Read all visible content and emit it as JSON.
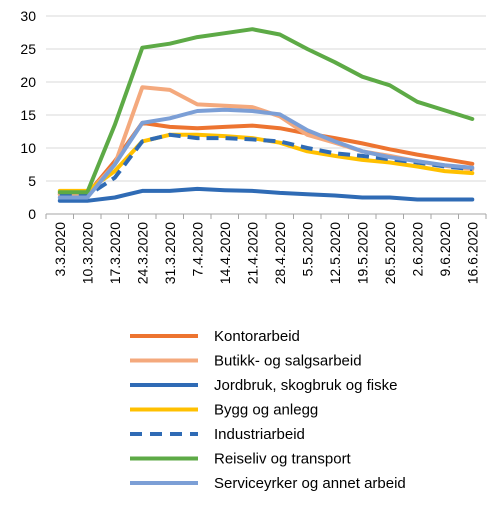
{
  "chart_data": {
    "type": "line",
    "title": "",
    "xlabel": "",
    "ylabel": "",
    "ylim": [
      0,
      30
    ],
    "yticks": [
      0,
      5,
      10,
      15,
      20,
      25,
      30
    ],
    "grid": "horizontal",
    "legend_position": "bottom",
    "categories": [
      "3.3.2020",
      "10.3.2020",
      "17.3.2020",
      "24.3.2020",
      "31.3.2020",
      "7.4.2020",
      "14.4.2020",
      "21.4.2020",
      "28.4.2020",
      "5.5.2020",
      "12.5.2020",
      "19.5.2020",
      "26.5.2020",
      "2.6.2020",
      "9.6.2020",
      "16.6.2020"
    ],
    "series": [
      {
        "name": "Kontorarbeid",
        "color": "#ED7430",
        "dashed": false,
        "x": [
          "3.3.2020",
          "10.3.2020",
          "17.3.2020",
          "24.3.2020",
          "31.3.2020",
          "7.4.2020",
          "14.4.2020",
          "21.4.2020",
          "28.4.2020",
          "5.5.2020",
          "12.5.2020",
          "19.5.2020",
          "26.5.2020",
          "2.6.2020",
          "9.6.2020",
          "16.6.2020"
        ],
        "values": [
          3.0,
          3.0,
          8.0,
          13.8,
          13.2,
          13.0,
          13.2,
          13.4,
          13.0,
          12.2,
          11.5,
          10.7,
          9.8,
          9.0,
          8.3,
          7.6
        ]
      },
      {
        "name": "Butikk- og salgsarbeid",
        "color": "#F4A97D",
        "dashed": false,
        "x": [
          "3.3.2020",
          "10.3.2020",
          "17.3.2020",
          "24.3.2020",
          "31.3.2020",
          "7.4.2020",
          "14.4.2020",
          "21.4.2020",
          "28.4.2020",
          "5.5.2020",
          "12.5.2020",
          "19.5.2020",
          "26.5.2020",
          "2.6.2020",
          "9.6.2020",
          "16.6.2020"
        ],
        "values": [
          3.0,
          3.0,
          7.5,
          19.2,
          18.8,
          16.6,
          16.4,
          16.2,
          14.8,
          12.0,
          10.8,
          9.5,
          8.8,
          8.0,
          7.3,
          6.8
        ]
      },
      {
        "name": "Jordbruk, skogbruk og fiske",
        "color": "#2F6BB5",
        "dashed": false,
        "x": [
          "3.3.2020",
          "10.3.2020",
          "17.3.2020",
          "24.3.2020",
          "31.3.2020",
          "7.4.2020",
          "14.4.2020",
          "21.4.2020",
          "28.4.2020",
          "5.5.2020",
          "12.5.2020",
          "19.5.2020",
          "26.5.2020",
          "2.6.2020",
          "9.6.2020",
          "16.6.2020"
        ],
        "values": [
          2.0,
          2.0,
          2.5,
          3.5,
          3.5,
          3.8,
          3.6,
          3.5,
          3.2,
          3.0,
          2.8,
          2.5,
          2.5,
          2.2,
          2.2,
          2.2
        ]
      },
      {
        "name": "Bygg og anlegg",
        "color": "#FFC000",
        "dashed": false,
        "x": [
          "3.3.2020",
          "10.3.2020",
          "17.3.2020",
          "24.3.2020",
          "31.3.2020",
          "7.4.2020",
          "14.4.2020",
          "21.4.2020",
          "28.4.2020",
          "5.5.2020",
          "12.5.2020",
          "19.5.2020",
          "26.5.2020",
          "2.6.2020",
          "9.6.2020",
          "16.6.2020"
        ],
        "values": [
          3.5,
          3.5,
          6.5,
          11.0,
          12.0,
          12.0,
          11.8,
          11.5,
          10.8,
          9.5,
          8.8,
          8.2,
          7.8,
          7.2,
          6.5,
          6.2
        ]
      },
      {
        "name": "Industriarbeid",
        "color": "#2F6BB5",
        "dashed": true,
        "x": [
          "3.3.2020",
          "10.3.2020",
          "17.3.2020",
          "24.3.2020",
          "31.3.2020",
          "7.4.2020",
          "14.4.2020",
          "21.4.2020",
          "28.4.2020",
          "5.5.2020",
          "12.5.2020",
          "19.5.2020",
          "26.5.2020",
          "2.6.2020",
          "9.6.2020",
          "16.6.2020"
        ],
        "values": [
          2.8,
          2.8,
          5.5,
          11.0,
          12.0,
          11.5,
          11.5,
          11.3,
          11.0,
          10.0,
          9.2,
          8.8,
          8.3,
          7.8,
          7.2,
          6.8
        ]
      },
      {
        "name": "Reiseliv og transport",
        "color": "#5DAA46",
        "dashed": false,
        "x": [
          "3.3.2020",
          "10.3.2020",
          "17.3.2020",
          "24.3.2020",
          "31.3.2020",
          "7.4.2020",
          "14.4.2020",
          "21.4.2020",
          "28.4.2020",
          "5.5.2020",
          "12.5.2020",
          "19.5.2020",
          "26.5.2020",
          "2.6.2020",
          "9.6.2020",
          "16.6.2020"
        ],
        "values": [
          3.3,
          3.3,
          13.5,
          25.2,
          25.8,
          26.8,
          27.4,
          28.0,
          27.2,
          25.0,
          23.0,
          20.8,
          19.5,
          17.0,
          15.7,
          14.4
        ]
      },
      {
        "name": "Serviceyrker og annet arbeid",
        "color": "#7C9FD6",
        "dashed": false,
        "x": [
          "3.3.2020",
          "10.3.2020",
          "17.3.2020",
          "24.3.2020",
          "31.3.2020",
          "7.4.2020",
          "14.4.2020",
          "21.4.2020",
          "28.4.2020",
          "5.5.2020",
          "12.5.2020",
          "19.5.2020",
          "26.5.2020",
          "2.6.2020",
          "9.6.2020",
          "16.6.2020"
        ],
        "values": [
          2.5,
          2.5,
          7.5,
          13.8,
          14.5,
          15.6,
          15.8,
          15.6,
          15.1,
          12.7,
          11.0,
          9.5,
          8.6,
          8.0,
          7.4,
          7.0
        ]
      }
    ]
  }
}
